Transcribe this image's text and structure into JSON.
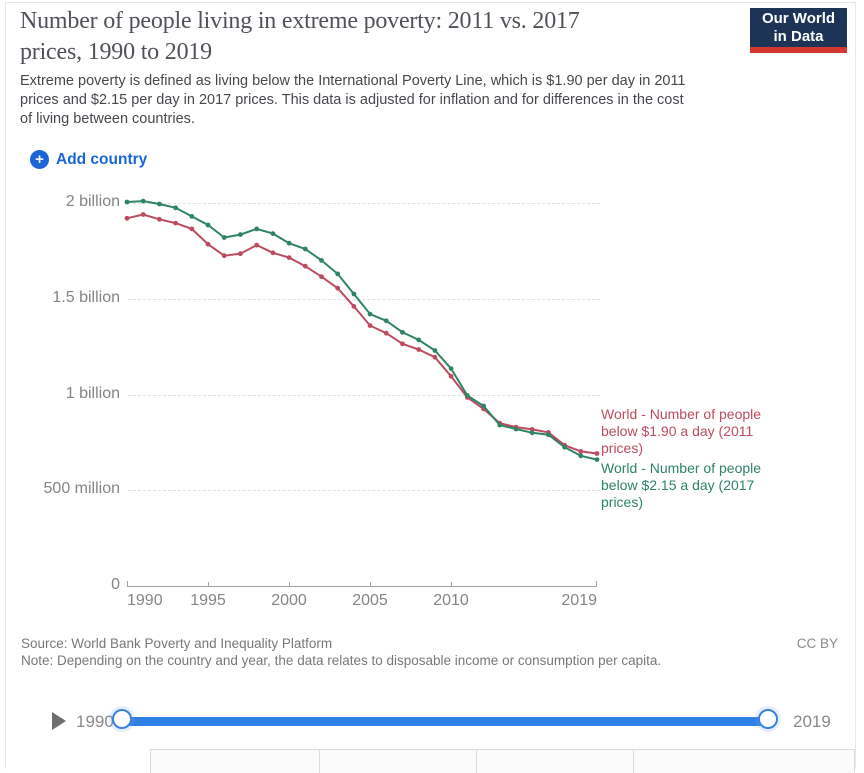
{
  "header": {
    "title_lines": [
      "Number of people living in extreme poverty: 2011 vs. 2017",
      "prices, 1990 to 2019"
    ],
    "subtitle_lines": [
      "Extreme poverty is defined as living below the International Poverty Line, which is $1.90 per day in 2011",
      "prices and $2.15 per day in 2017 prices. This data is adjusted for inflation and for differences in the cost",
      "of living between countries."
    ],
    "logo_lines": [
      "Our World",
      "in Data"
    ],
    "logo_colors": {
      "navy": "#1d3456",
      "red": "#d33830"
    }
  },
  "controls": {
    "add_country_label": "Add country",
    "accent_blue": "#1a66d6"
  },
  "chart_data": {
    "type": "line",
    "title": "Number of people living in extreme poverty: 2011 vs. 2017 prices, 1990 to 2019",
    "x": [
      1990,
      1991,
      1992,
      1993,
      1994,
      1995,
      1996,
      1997,
      1998,
      1999,
      2000,
      2001,
      2002,
      2003,
      2004,
      2005,
      2006,
      2007,
      2008,
      2009,
      2010,
      2011,
      2012,
      2013,
      2014,
      2015,
      2016,
      2017,
      2018,
      2019
    ],
    "series": [
      {
        "name": "World - Number of people below $1.90 a day (2011 prices)",
        "label_lines": [
          "World - Number of people",
          "below $1.90 a day (2011",
          "prices)"
        ],
        "color": "#be4a60",
        "values_millions": [
          1920,
          1940,
          1915,
          1895,
          1865,
          1785,
          1725,
          1735,
          1780,
          1740,
          1715,
          1670,
          1615,
          1555,
          1460,
          1360,
          1320,
          1265,
          1235,
          1195,
          1095,
          985,
          925,
          850,
          830,
          818,
          802,
          735,
          703,
          692
        ]
      },
      {
        "name": "World - Number of people below $2.15 a day (2017 prices)",
        "label_lines": [
          "World - Number of people",
          "below $2.15 a day (2017",
          "prices)"
        ],
        "color": "#2e8465",
        "values_millions": [
          2005,
          2010,
          1995,
          1975,
          1930,
          1885,
          1820,
          1835,
          1865,
          1840,
          1790,
          1760,
          1700,
          1630,
          1525,
          1420,
          1385,
          1325,
          1285,
          1230,
          1135,
          995,
          940,
          840,
          820,
          800,
          790,
          725,
          680,
          660
        ]
      }
    ],
    "y_axis": {
      "tick_labels": [
        "0",
        "500 million",
        "1 billion",
        "1.5 billion",
        "2 billion"
      ],
      "tick_values_millions": [
        0,
        500,
        1000,
        1500,
        2000
      ]
    },
    "x_axis": {
      "tick_labels": [
        "1990",
        "1995",
        "2000",
        "2005",
        "2010",
        "2019"
      ],
      "tick_years": [
        1990,
        1995,
        2000,
        2005,
        2010,
        2019
      ]
    },
    "xlim": [
      1990,
      2019
    ],
    "ylim_millions": [
      0,
      2070
    ],
    "grid": "horizontal dashed",
    "legend_position": "right of line ends"
  },
  "footer": {
    "source": "Source: World Bank Poverty and Inequality Platform",
    "note": "Note: Depending on the country and year, the data relates to disposable income or consumption per capita.",
    "license": "CC BY"
  },
  "timeline": {
    "start_label": "1990",
    "end_label": "2019",
    "track_color": "#2f80e4"
  }
}
